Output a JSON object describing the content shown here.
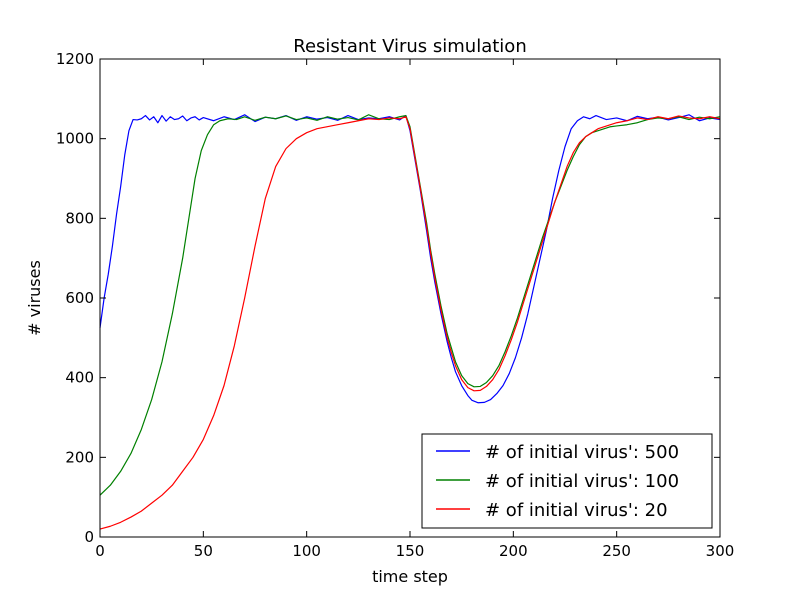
{
  "chart_data": {
    "type": "line",
    "title": "Resistant Virus simulation",
    "xlabel": "time step",
    "ylabel": "# viruses",
    "xlim": [
      0,
      300
    ],
    "ylim": [
      0,
      1200
    ],
    "xticks": [
      0,
      50,
      100,
      150,
      200,
      250,
      300
    ],
    "yticks": [
      0,
      200,
      400,
      600,
      800,
      1000,
      1200
    ],
    "grid": false,
    "legend_position": "lower-right",
    "series": [
      {
        "name": "# of initial virus': 500",
        "color": "#0000ff",
        "points": [
          [
            0,
            525
          ],
          [
            2,
            600
          ],
          [
            4,
            660
          ],
          [
            6,
            730
          ],
          [
            8,
            810
          ],
          [
            10,
            880
          ],
          [
            12,
            960
          ],
          [
            14,
            1020
          ],
          [
            16,
            1048
          ],
          [
            18,
            1047
          ],
          [
            20,
            1050
          ],
          [
            22,
            1058
          ],
          [
            24,
            1047
          ],
          [
            26,
            1055
          ],
          [
            28,
            1040
          ],
          [
            30,
            1058
          ],
          [
            32,
            1044
          ],
          [
            34,
            1055
          ],
          [
            36,
            1048
          ],
          [
            38,
            1050
          ],
          [
            40,
            1057
          ],
          [
            42,
            1045
          ],
          [
            44,
            1052
          ],
          [
            46,
            1055
          ],
          [
            48,
            1047
          ],
          [
            50,
            1053
          ],
          [
            55,
            1045
          ],
          [
            60,
            1055
          ],
          [
            65,
            1048
          ],
          [
            70,
            1060
          ],
          [
            75,
            1043
          ],
          [
            80,
            1054
          ],
          [
            85,
            1050
          ],
          [
            90,
            1058
          ],
          [
            95,
            1046
          ],
          [
            100,
            1055
          ],
          [
            105,
            1049
          ],
          [
            110,
            1053
          ],
          [
            115,
            1046
          ],
          [
            120,
            1058
          ],
          [
            125,
            1048
          ],
          [
            130,
            1052
          ],
          [
            135,
            1050
          ],
          [
            140,
            1055
          ],
          [
            145,
            1047
          ],
          [
            148,
            1058
          ],
          [
            150,
            1020
          ],
          [
            152,
            960
          ],
          [
            155,
            870
          ],
          [
            158,
            770
          ],
          [
            160,
            700
          ],
          [
            162,
            640
          ],
          [
            165,
            560
          ],
          [
            168,
            490
          ],
          [
            170,
            450
          ],
          [
            172,
            415
          ],
          [
            175,
            380
          ],
          [
            178,
            355
          ],
          [
            180,
            343
          ],
          [
            183,
            337
          ],
          [
            186,
            338
          ],
          [
            189,
            345
          ],
          [
            192,
            360
          ],
          [
            195,
            380
          ],
          [
            198,
            410
          ],
          [
            201,
            450
          ],
          [
            204,
            500
          ],
          [
            207,
            560
          ],
          [
            210,
            630
          ],
          [
            213,
            700
          ],
          [
            216,
            770
          ],
          [
            219,
            850
          ],
          [
            222,
            920
          ],
          [
            225,
            980
          ],
          [
            228,
            1025
          ],
          [
            231,
            1045
          ],
          [
            234,
            1055
          ],
          [
            237,
            1050
          ],
          [
            240,
            1058
          ],
          [
            245,
            1048
          ],
          [
            250,
            1052
          ],
          [
            255,
            1045
          ],
          [
            260,
            1056
          ],
          [
            265,
            1050
          ],
          [
            270,
            1054
          ],
          [
            275,
            1047
          ],
          [
            280,
            1053
          ],
          [
            285,
            1060
          ],
          [
            290,
            1045
          ],
          [
            295,
            1052
          ],
          [
            300,
            1048
          ]
        ]
      },
      {
        "name": "# of initial virus': 100",
        "color": "#008000",
        "points": [
          [
            0,
            105
          ],
          [
            5,
            130
          ],
          [
            10,
            165
          ],
          [
            15,
            210
          ],
          [
            20,
            270
          ],
          [
            25,
            345
          ],
          [
            30,
            440
          ],
          [
            35,
            560
          ],
          [
            40,
            700
          ],
          [
            43,
            800
          ],
          [
            46,
            900
          ],
          [
            49,
            970
          ],
          [
            52,
            1010
          ],
          [
            55,
            1035
          ],
          [
            58,
            1045
          ],
          [
            62,
            1050
          ],
          [
            66,
            1048
          ],
          [
            70,
            1055
          ],
          [
            75,
            1046
          ],
          [
            80,
            1054
          ],
          [
            85,
            1050
          ],
          [
            90,
            1057
          ],
          [
            95,
            1048
          ],
          [
            100,
            1052
          ],
          [
            105,
            1046
          ],
          [
            110,
            1055
          ],
          [
            115,
            1049
          ],
          [
            120,
            1053
          ],
          [
            125,
            1047
          ],
          [
            130,
            1060
          ],
          [
            135,
            1050
          ],
          [
            140,
            1048
          ],
          [
            145,
            1055
          ],
          [
            148,
            1058
          ],
          [
            150,
            1030
          ],
          [
            152,
            970
          ],
          [
            155,
            880
          ],
          [
            158,
            790
          ],
          [
            160,
            720
          ],
          [
            162,
            660
          ],
          [
            165,
            580
          ],
          [
            168,
            510
          ],
          [
            170,
            475
          ],
          [
            172,
            440
          ],
          [
            175,
            405
          ],
          [
            178,
            385
          ],
          [
            181,
            377
          ],
          [
            184,
            378
          ],
          [
            187,
            388
          ],
          [
            190,
            405
          ],
          [
            193,
            430
          ],
          [
            196,
            465
          ],
          [
            199,
            505
          ],
          [
            202,
            550
          ],
          [
            205,
            600
          ],
          [
            208,
            650
          ],
          [
            211,
            700
          ],
          [
            214,
            750
          ],
          [
            217,
            795
          ],
          [
            220,
            840
          ],
          [
            223,
            880
          ],
          [
            226,
            920
          ],
          [
            229,
            955
          ],
          [
            232,
            985
          ],
          [
            235,
            1005
          ],
          [
            238,
            1015
          ],
          [
            241,
            1020
          ],
          [
            244,
            1025
          ],
          [
            247,
            1030
          ],
          [
            250,
            1032
          ],
          [
            255,
            1035
          ],
          [
            260,
            1040
          ],
          [
            265,
            1048
          ],
          [
            270,
            1052
          ],
          [
            275,
            1050
          ],
          [
            280,
            1055
          ],
          [
            285,
            1048
          ],
          [
            290,
            1054
          ],
          [
            295,
            1050
          ],
          [
            300,
            1055
          ]
        ]
      },
      {
        "name": "# of initial virus': 20",
        "color": "#ff0000",
        "points": [
          [
            0,
            20
          ],
          [
            5,
            27
          ],
          [
            10,
            37
          ],
          [
            15,
            50
          ],
          [
            20,
            65
          ],
          [
            25,
            85
          ],
          [
            30,
            105
          ],
          [
            35,
            130
          ],
          [
            40,
            165
          ],
          [
            45,
            200
          ],
          [
            50,
            245
          ],
          [
            55,
            305
          ],
          [
            60,
            380
          ],
          [
            65,
            480
          ],
          [
            70,
            600
          ],
          [
            75,
            730
          ],
          [
            80,
            850
          ],
          [
            85,
            930
          ],
          [
            90,
            975
          ],
          [
            95,
            1000
          ],
          [
            100,
            1015
          ],
          [
            105,
            1025
          ],
          [
            110,
            1030
          ],
          [
            115,
            1035
          ],
          [
            120,
            1040
          ],
          [
            125,
            1045
          ],
          [
            130,
            1050
          ],
          [
            135,
            1048
          ],
          [
            140,
            1052
          ],
          [
            145,
            1050
          ],
          [
            148,
            1055
          ],
          [
            150,
            1025
          ],
          [
            152,
            965
          ],
          [
            155,
            875
          ],
          [
            158,
            780
          ],
          [
            160,
            712
          ],
          [
            162,
            650
          ],
          [
            165,
            570
          ],
          [
            168,
            500
          ],
          [
            170,
            463
          ],
          [
            172,
            430
          ],
          [
            175,
            395
          ],
          [
            178,
            375
          ],
          [
            181,
            367
          ],
          [
            184,
            368
          ],
          [
            187,
            378
          ],
          [
            190,
            395
          ],
          [
            193,
            420
          ],
          [
            196,
            455
          ],
          [
            199,
            495
          ],
          [
            202,
            540
          ],
          [
            205,
            590
          ],
          [
            208,
            640
          ],
          [
            211,
            690
          ],
          [
            214,
            740
          ],
          [
            217,
            790
          ],
          [
            220,
            840
          ],
          [
            223,
            885
          ],
          [
            226,
            930
          ],
          [
            229,
            965
          ],
          [
            232,
            990
          ],
          [
            235,
            1005
          ],
          [
            238,
            1015
          ],
          [
            241,
            1025
          ],
          [
            244,
            1030
          ],
          [
            247,
            1035
          ],
          [
            250,
            1040
          ],
          [
            255,
            1045
          ],
          [
            260,
            1052
          ],
          [
            265,
            1048
          ],
          [
            270,
            1055
          ],
          [
            275,
            1050
          ],
          [
            280,
            1057
          ],
          [
            285,
            1052
          ],
          [
            290,
            1050
          ],
          [
            295,
            1055
          ],
          [
            300,
            1050
          ]
        ]
      }
    ]
  }
}
